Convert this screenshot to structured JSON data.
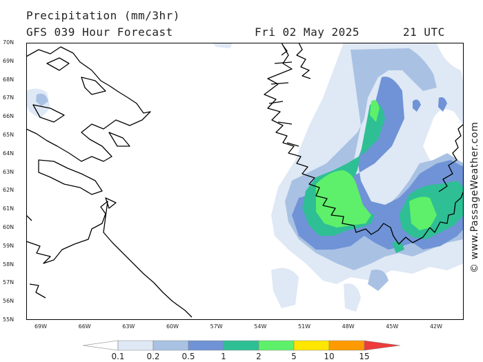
{
  "header": {
    "title": "Precipitation (mm/3hr)",
    "model": "GFS 039 Hour Forecast",
    "date": "Fri 02 May 2025",
    "time": "21 UTC"
  },
  "credit": "© www.PassageWeather.com",
  "map": {
    "lat_labels": [
      "70N",
      "69N",
      "68N",
      "67N",
      "66N",
      "65N",
      "64N",
      "63N",
      "62N",
      "61N",
      "60N",
      "59N",
      "58N",
      "57N",
      "56N",
      "55N"
    ],
    "lon_labels": [
      "69W",
      "66W",
      "63W",
      "60W",
      "57W",
      "54W",
      "51W",
      "48W",
      "45W",
      "42W"
    ],
    "colors": {
      "frame": "#000000",
      "coast": "#000000",
      "level_0_1": "#dfe8f5",
      "level_0_2": "#a9c2e3",
      "level_0_5": "#6f93d6",
      "level_1": "#2fbf95",
      "level_2": "#5ef06a"
    }
  },
  "colorbar": {
    "labels": [
      "0.1",
      "0.2",
      "0.5",
      "1",
      "2",
      "5",
      "10",
      "15"
    ],
    "colors": [
      "#ffffff",
      "#dfe8f5",
      "#a9c2e3",
      "#6f93d6",
      "#2fbf95",
      "#5ef06a",
      "#ffe600",
      "#ff9a00",
      "#ee3b3b"
    ]
  }
}
